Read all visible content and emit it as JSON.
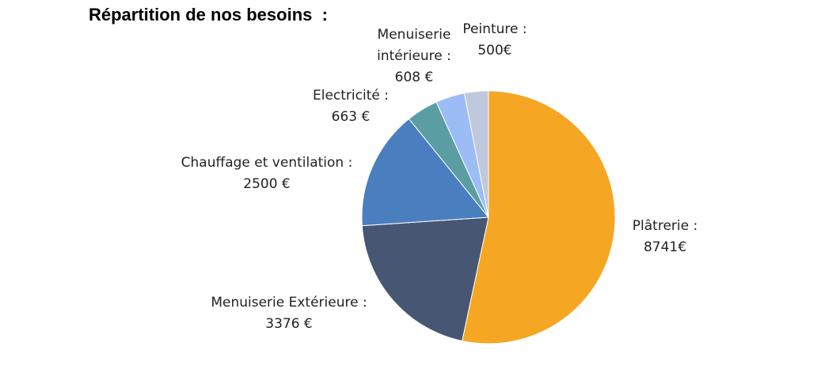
{
  "chart_data": {
    "type": "pie",
    "title": "Répartition de nos besoins  :",
    "categories": [
      "Plâtrerie :",
      "Menuiserie Extérieure :",
      "Chauffage et ventilation :",
      "Electricité :",
      "Menuiserie intérieure :",
      "Peinture :"
    ],
    "values": [
      8741,
      3376,
      2500,
      663,
      608,
      500
    ],
    "value_labels": [
      "8741€",
      "3376 €",
      "2500 €",
      "663 €",
      "608 €",
      "500€"
    ],
    "colors": [
      "#f5a623",
      "#475672",
      "#4a7fbf",
      "#5a9ea3",
      "#9bbcf5",
      "#bfc8dc"
    ]
  }
}
